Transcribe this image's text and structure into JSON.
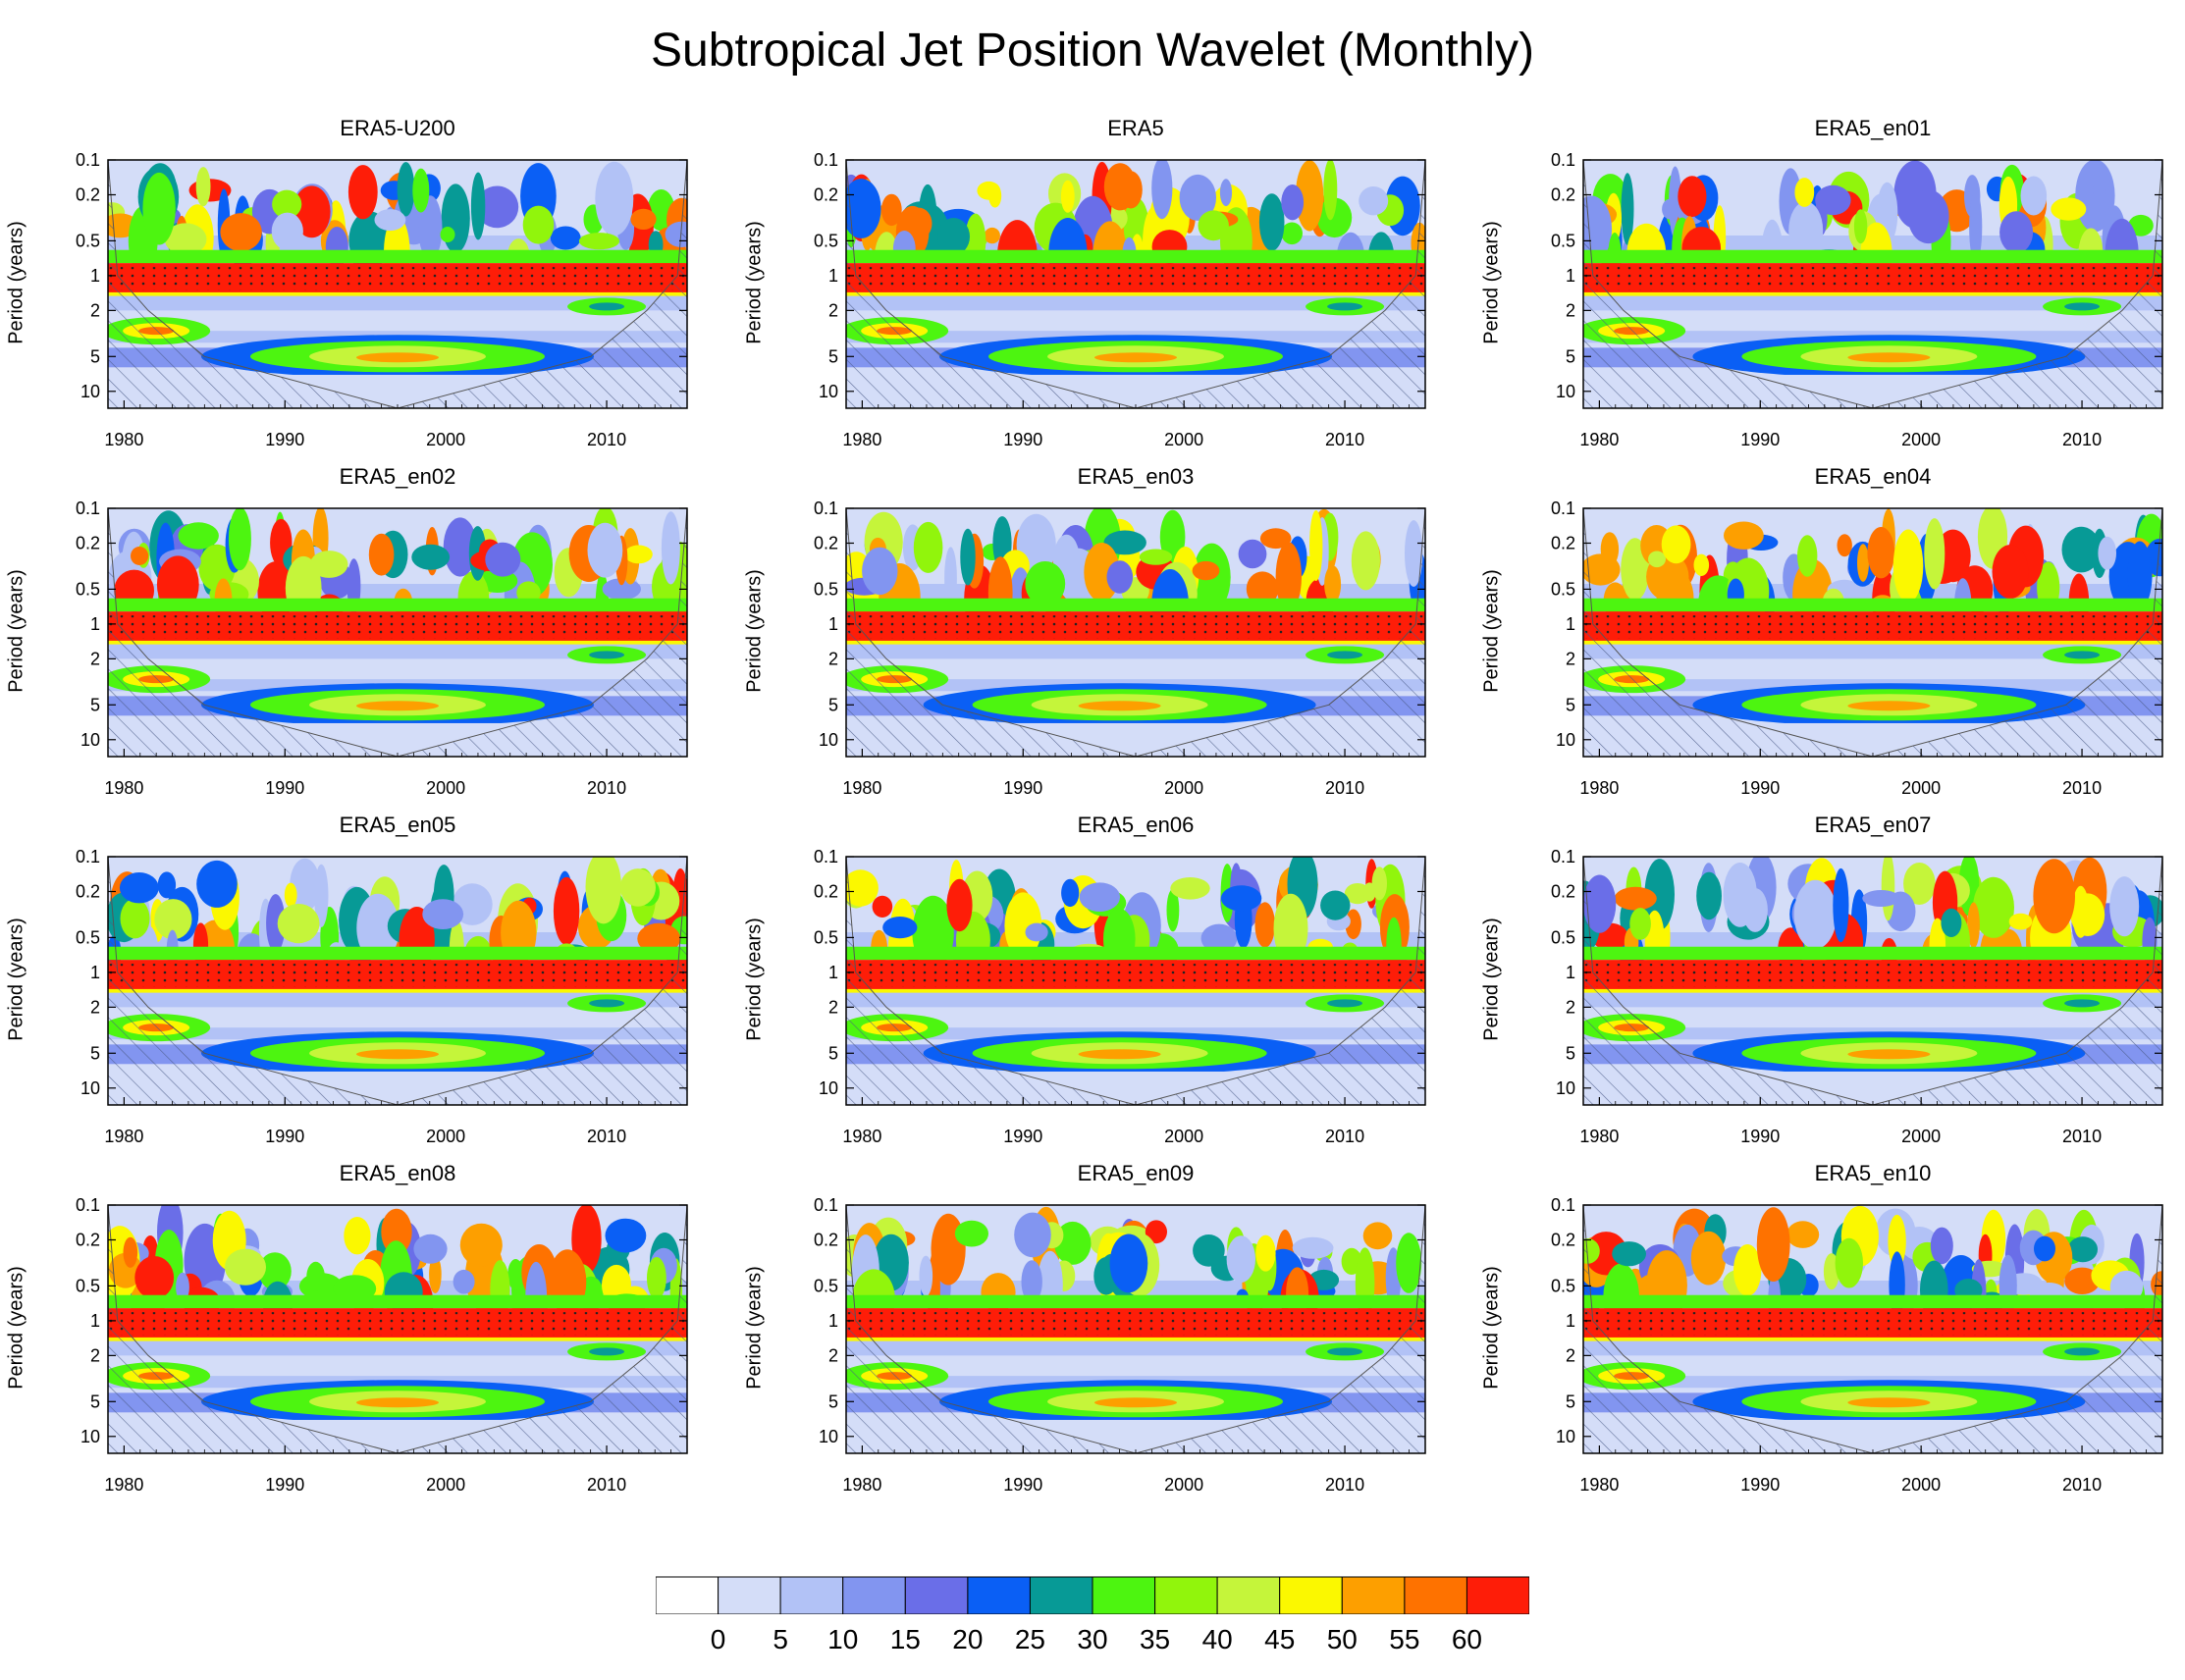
{
  "figure": {
    "title": "Subtropical Jet Position Wavelet (Monthly)"
  },
  "chart_data": [
    {
      "type": "heatmap",
      "title": "ERA5-U200",
      "ylabel": "Period (years)",
      "xlabel": "",
      "xlim": [
        1979,
        2015
      ],
      "ylim": [
        0.1,
        14
      ],
      "ytick_labels": [
        "0.1",
        "0.2",
        "0.5",
        "1",
        "2",
        "5",
        "10"
      ],
      "xtick_labels": [
        "1980",
        "1990",
        "2000",
        "2010"
      ],
      "annual_band_period": 1,
      "peak_year_5yr": 1997
    },
    {
      "type": "heatmap",
      "title": "ERA5",
      "ylabel": "Period (years)",
      "xlabel": "",
      "xlim": [
        1979,
        2015
      ],
      "ylim": [
        0.1,
        14
      ],
      "ytick_labels": [
        "0.1",
        "0.2",
        "0.5",
        "1",
        "2",
        "5",
        "10"
      ],
      "xtick_labels": [
        "1980",
        "1990",
        "2000",
        "2010"
      ],
      "annual_band_period": 1,
      "peak_year_5yr": 1997
    },
    {
      "type": "heatmap",
      "title": "ERA5_en01",
      "ylabel": "Period (years)",
      "xlabel": "",
      "xlim": [
        1979,
        2015
      ],
      "ylim": [
        0.1,
        14
      ],
      "ytick_labels": [
        "0.1",
        "0.2",
        "0.5",
        "1",
        "2",
        "5",
        "10"
      ],
      "xtick_labels": [
        "1980",
        "1990",
        "2000",
        "2010"
      ],
      "annual_band_period": 1,
      "peak_year_5yr": 1998
    },
    {
      "type": "heatmap",
      "title": "ERA5_en02",
      "ylabel": "Period (years)",
      "xlabel": "",
      "xlim": [
        1979,
        2015
      ],
      "ylim": [
        0.1,
        14
      ],
      "ytick_labels": [
        "0.1",
        "0.2",
        "0.5",
        "1",
        "2",
        "5",
        "10"
      ],
      "xtick_labels": [
        "1980",
        "1990",
        "2000",
        "2010"
      ],
      "annual_band_period": 1,
      "peak_year_5yr": 1997
    },
    {
      "type": "heatmap",
      "title": "ERA5_en03",
      "ylabel": "Period (years)",
      "xlabel": "",
      "xlim": [
        1979,
        2015
      ],
      "ylim": [
        0.1,
        14
      ],
      "ytick_labels": [
        "0.1",
        "0.2",
        "0.5",
        "1",
        "2",
        "5",
        "10"
      ],
      "xtick_labels": [
        "1980",
        "1990",
        "2000",
        "2010"
      ],
      "annual_band_period": 1,
      "peak_year_5yr": 1996
    },
    {
      "type": "heatmap",
      "title": "ERA5_en04",
      "ylabel": "Period (years)",
      "xlabel": "",
      "xlim": [
        1979,
        2015
      ],
      "ylim": [
        0.1,
        14
      ],
      "ytick_labels": [
        "0.1",
        "0.2",
        "0.5",
        "1",
        "2",
        "5",
        "10"
      ],
      "xtick_labels": [
        "1980",
        "1990",
        "2000",
        "2010"
      ],
      "annual_band_period": 1,
      "peak_year_5yr": 1998
    },
    {
      "type": "heatmap",
      "title": "ERA5_en05",
      "ylabel": "Period (years)",
      "xlabel": "",
      "xlim": [
        1979,
        2015
      ],
      "ylim": [
        0.1,
        14
      ],
      "ytick_labels": [
        "0.1",
        "0.2",
        "0.5",
        "1",
        "2",
        "5",
        "10"
      ],
      "xtick_labels": [
        "1980",
        "1990",
        "2000",
        "2010"
      ],
      "annual_band_period": 1,
      "peak_year_5yr": 1997
    },
    {
      "type": "heatmap",
      "title": "ERA5_en06",
      "ylabel": "Period (years)",
      "xlabel": "",
      "xlim": [
        1979,
        2015
      ],
      "ylim": [
        0.1,
        14
      ],
      "ytick_labels": [
        "0.1",
        "0.2",
        "0.5",
        "1",
        "2",
        "5",
        "10"
      ],
      "xtick_labels": [
        "1980",
        "1990",
        "2000",
        "2010"
      ],
      "annual_band_period": 1,
      "peak_year_5yr": 1996
    },
    {
      "type": "heatmap",
      "title": "ERA5_en07",
      "ylabel": "Period (years)",
      "xlabel": "",
      "xlim": [
        1979,
        2015
      ],
      "ylim": [
        0.1,
        14
      ],
      "ytick_labels": [
        "0.1",
        "0.2",
        "0.5",
        "1",
        "2",
        "5",
        "10"
      ],
      "xtick_labels": [
        "1980",
        "1990",
        "2000",
        "2010"
      ],
      "annual_band_period": 1,
      "peak_year_5yr": 1998
    },
    {
      "type": "heatmap",
      "title": "ERA5_en08",
      "ylabel": "Period (years)",
      "xlabel": "",
      "xlim": [
        1979,
        2015
      ],
      "ylim": [
        0.1,
        14
      ],
      "ytick_labels": [
        "0.1",
        "0.2",
        "0.5",
        "1",
        "2",
        "5",
        "10"
      ],
      "xtick_labels": [
        "1980",
        "1990",
        "2000",
        "2010"
      ],
      "annual_band_period": 1,
      "peak_year_5yr": 1997
    },
    {
      "type": "heatmap",
      "title": "ERA5_en09",
      "ylabel": "Period (years)",
      "xlabel": "",
      "xlim": [
        1979,
        2015
      ],
      "ylim": [
        0.1,
        14
      ],
      "ytick_labels": [
        "0.1",
        "0.2",
        "0.5",
        "1",
        "2",
        "5",
        "10"
      ],
      "xtick_labels": [
        "1980",
        "1990",
        "2000",
        "2010"
      ],
      "annual_band_period": 1,
      "peak_year_5yr": 1997
    },
    {
      "type": "heatmap",
      "title": "ERA5_en10",
      "ylabel": "Period (years)",
      "xlabel": "",
      "xlim": [
        1979,
        2015
      ],
      "ylim": [
        0.1,
        14
      ],
      "ytick_labels": [
        "0.1",
        "0.2",
        "0.5",
        "1",
        "2",
        "5",
        "10"
      ],
      "xtick_labels": [
        "1980",
        "1990",
        "2000",
        "2010"
      ],
      "annual_band_period": 1,
      "peak_year_5yr": 1998
    }
  ],
  "colorbar": {
    "colors": [
      "#ffffff",
      "#d4ddf8",
      "#b2c2f6",
      "#8295f0",
      "#6a6ee8",
      "#0a5ff5",
      "#079a96",
      "#4df510",
      "#91f50c",
      "#c5f53a",
      "#fbf800",
      "#fd9f00",
      "#fe7200",
      "#fe1d08"
    ],
    "labels": [
      "0",
      "5",
      "10",
      "15",
      "20",
      "25",
      "30",
      "35",
      "40",
      "45",
      "50",
      "55",
      "60"
    ]
  }
}
